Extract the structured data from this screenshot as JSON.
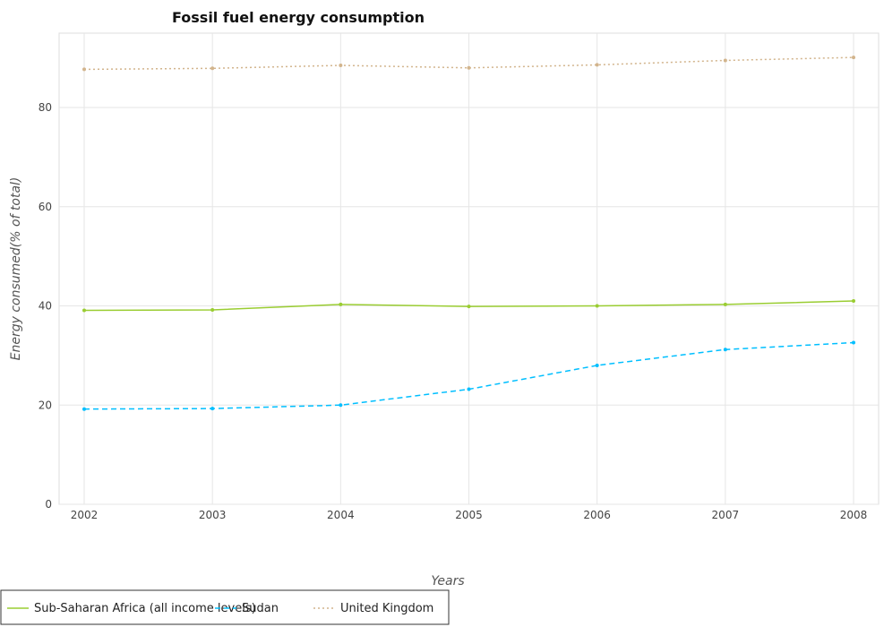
{
  "chart_data": {
    "type": "line",
    "title": "Fossil fuel energy consumption",
    "xlabel": "Years",
    "ylabel": "Energy consumed(% of total)",
    "x": [
      "2002",
      "2003",
      "2004",
      "2005",
      "2006",
      "2007",
      "2008"
    ],
    "ylim": [
      0,
      95
    ],
    "yticks": [
      0,
      20,
      40,
      60,
      80
    ],
    "grid": true,
    "legend_position": "bottom",
    "series": [
      {
        "name": "Sub-Saharan Africa (all income levels)",
        "color": "#9acd32",
        "dash": "solid",
        "values": [
          39.1,
          39.2,
          40.3,
          39.9,
          40.0,
          40.3,
          41.0
        ]
      },
      {
        "name": "Sudan",
        "color": "#00bfff",
        "dash": "dashed",
        "values": [
          19.2,
          19.3,
          20.0,
          23.2,
          28.0,
          31.2,
          32.6
        ]
      },
      {
        "name": "United Kingdom",
        "color": "#d2b48c",
        "dash": "dotted",
        "values": [
          87.7,
          87.9,
          88.5,
          88.0,
          88.6,
          89.5,
          90.1
        ]
      }
    ]
  }
}
